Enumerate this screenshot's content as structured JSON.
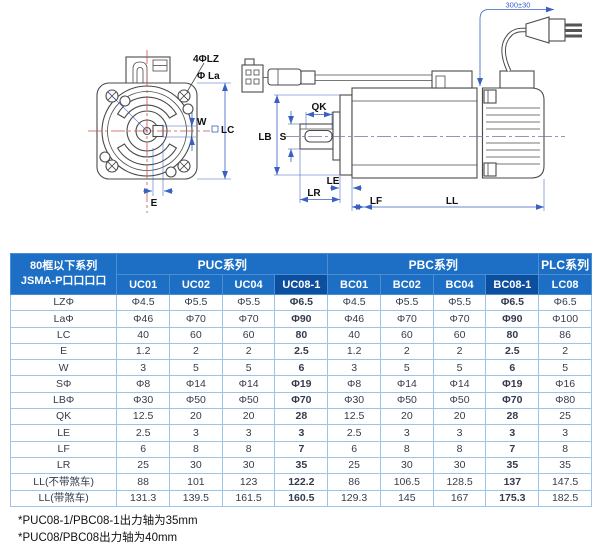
{
  "diagram": {
    "front": {
      "label_holes": "4ΦLZ",
      "label_la": "Φ La",
      "label_w": "W",
      "label_lc": "LC",
      "label_e": "E"
    },
    "side": {
      "label_qk": "QK",
      "label_s": "S",
      "label_lb": "LB",
      "label_le": "LE",
      "label_lr": "LR",
      "label_lf": "LF",
      "label_ll": "LL",
      "label_cable_length": "300±30"
    }
  },
  "table": {
    "corner": {
      "line1": "80框以下系列",
      "line2": "JSMA-P口口口口"
    },
    "groups": [
      {
        "label": "PUC系列",
        "span": 4
      },
      {
        "label": "PBC系列",
        "span": 4
      },
      {
        "label": "PLC系列",
        "span": 1
      }
    ],
    "columns": [
      {
        "label": "UC01",
        "highlight": false
      },
      {
        "label": "UC02",
        "highlight": false
      },
      {
        "label": "UC04",
        "highlight": false
      },
      {
        "label": "UC08-1",
        "highlight": true
      },
      {
        "label": "BC01",
        "highlight": false
      },
      {
        "label": "BC02",
        "highlight": false
      },
      {
        "label": "BC04",
        "highlight": false
      },
      {
        "label": "BC08-1",
        "highlight": true
      },
      {
        "label": "LC08",
        "highlight": false
      }
    ],
    "rows": [
      {
        "label": "LZΦ",
        "values": [
          "Φ4.5",
          "Φ5.5",
          "Φ5.5",
          "Φ6.5",
          "Φ4.5",
          "Φ5.5",
          "Φ5.5",
          "Φ6.5",
          "Φ6.5"
        ]
      },
      {
        "label": "LaΦ",
        "values": [
          "Φ46",
          "Φ70",
          "Φ70",
          "Φ90",
          "Φ46",
          "Φ70",
          "Φ70",
          "Φ90",
          "Φ100"
        ]
      },
      {
        "label": "LC",
        "values": [
          "40",
          "60",
          "60",
          "80",
          "40",
          "60",
          "60",
          "80",
          "86"
        ]
      },
      {
        "label": "E",
        "values": [
          "1.2",
          "2",
          "2",
          "2.5",
          "1.2",
          "2",
          "2",
          "2.5",
          "2"
        ]
      },
      {
        "label": "W",
        "values": [
          "3",
          "5",
          "5",
          "6",
          "3",
          "5",
          "5",
          "6",
          "5"
        ]
      },
      {
        "label": "SΦ",
        "values": [
          "Φ8",
          "Φ14",
          "Φ14",
          "Φ19",
          "Φ8",
          "Φ14",
          "Φ14",
          "Φ19",
          "Φ16"
        ]
      },
      {
        "label": "LBΦ",
        "values": [
          "Φ30",
          "Φ50",
          "Φ50",
          "Φ70",
          "Φ30",
          "Φ50",
          "Φ50",
          "Φ70",
          "Φ80"
        ]
      },
      {
        "label": "QK",
        "values": [
          "12.5",
          "20",
          "20",
          "28",
          "12.5",
          "20",
          "20",
          "28",
          "25"
        ]
      },
      {
        "label": "LE",
        "values": [
          "2.5",
          "3",
          "3",
          "3",
          "2.5",
          "3",
          "3",
          "3",
          "3"
        ]
      },
      {
        "label": "LF",
        "values": [
          "6",
          "8",
          "8",
          "7",
          "6",
          "8",
          "8",
          "7",
          "8"
        ]
      },
      {
        "label": "LR",
        "values": [
          "25",
          "30",
          "30",
          "35",
          "25",
          "30",
          "30",
          "35",
          "35"
        ]
      },
      {
        "label": "LL(不带煞车)",
        "values": [
          "88",
          "101",
          "123",
          "122.2",
          "86",
          "106.5",
          "128.5",
          "137",
          "147.5"
        ]
      },
      {
        "label": "LL(带煞车)",
        "values": [
          "131.3",
          "139.5",
          "161.5",
          "160.5",
          "129.3",
          "145",
          "167",
          "175.3",
          "182.5"
        ]
      }
    ],
    "colors": {
      "header_bg": "#1c6fc4",
      "header_highlight_bg": "#0d4f9f",
      "cell_border": "#9dc3e8",
      "outer_border": "#2a6cb8"
    }
  },
  "notes": [
    "*PUC08-1/PBC08-1出力轴为35mm",
    "*PUC08/PBC08出力轴为40mm"
  ]
}
